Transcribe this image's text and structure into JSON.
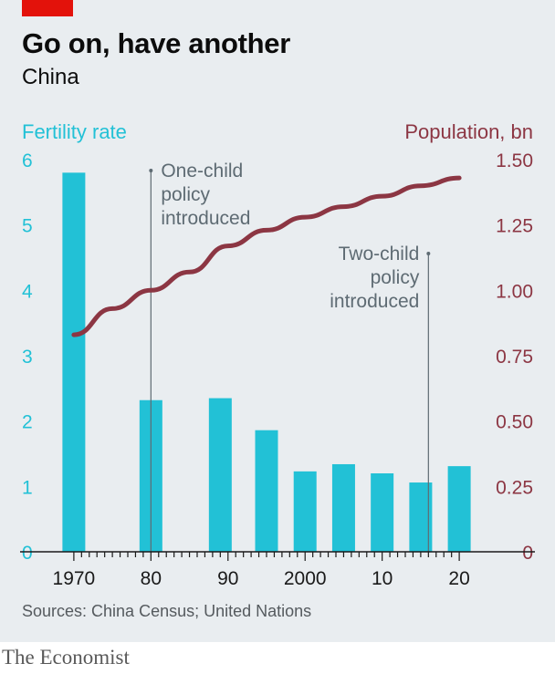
{
  "header": {
    "title": "Go on, have another",
    "subtitle": "China"
  },
  "footer": {
    "source": "Sources: China Census; United Nations",
    "brand": "The Economist"
  },
  "colors": {
    "accent_red": "#e3120b",
    "bar": "#22c1d6",
    "line": "#8c3643",
    "background": "#e9edf0",
    "annotation": "#5e6b73"
  },
  "chart_data": {
    "type": "bar",
    "x_tick_labels": [
      "1970",
      "80",
      "90",
      "2000",
      "10",
      "20"
    ],
    "x_tick_years": [
      1970,
      1980,
      1990,
      2000,
      2010,
      2020
    ],
    "xlim": [
      1968,
      2022
    ],
    "grid": false,
    "series": [
      {
        "name": "Fertility rate",
        "axis": "left",
        "type": "bar",
        "x": [
          1970,
          1980,
          1989,
          1995,
          2000,
          2005,
          2010,
          2015,
          2020
        ],
        "values": [
          5.8,
          2.32,
          2.35,
          1.86,
          1.23,
          1.34,
          1.2,
          1.06,
          1.31
        ]
      },
      {
        "name": "Population, bn",
        "axis": "right",
        "type": "line",
        "x": [
          1970,
          1975,
          1980,
          1985,
          1990,
          1995,
          2000,
          2005,
          2010,
          2015,
          2020
        ],
        "values": [
          0.83,
          0.93,
          1.0,
          1.07,
          1.17,
          1.23,
          1.28,
          1.32,
          1.36,
          1.4,
          1.43
        ]
      }
    ],
    "y_left": {
      "label": "Fertility rate",
      "ylim": [
        0,
        6
      ],
      "ticks": [
        0,
        1,
        2,
        3,
        4,
        5,
        6
      ],
      "tick_labels": [
        "0",
        "1",
        "2",
        "3",
        "4",
        "5",
        "6"
      ]
    },
    "y_right": {
      "label": "Population, bn",
      "ylim": [
        0,
        1.5
      ],
      "ticks": [
        0,
        0.25,
        0.5,
        0.75,
        1.0,
        1.25,
        1.5
      ],
      "tick_labels": [
        "0",
        "0.25",
        "0.50",
        "0.75",
        "1.00",
        "1.25",
        "1.50"
      ]
    },
    "annotations": [
      {
        "year": 1980,
        "lines": [
          "One-child",
          "policy",
          "introduced"
        ],
        "align": "start"
      },
      {
        "year": 2016,
        "lines": [
          "Two-child",
          "policy",
          "introduced"
        ],
        "align": "end"
      }
    ]
  }
}
